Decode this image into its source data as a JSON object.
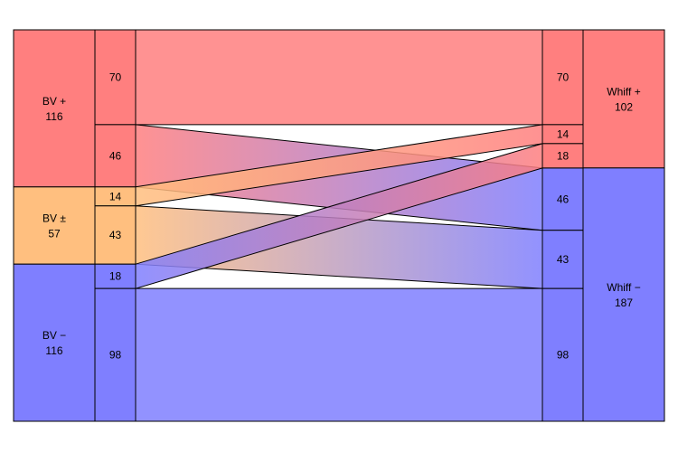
{
  "colors": {
    "plus": "#ff7f7f",
    "neutral": "#ffbf7f",
    "minus": "#7f7fff",
    "border": "#000000",
    "background": "#ffffff"
  },
  "left_groups": [
    {
      "key": "plus",
      "name": "BV +",
      "total": "116"
    },
    {
      "key": "neutral",
      "name": "BV ±",
      "total": "57"
    },
    {
      "key": "minus",
      "name": "BV −",
      "total": "116"
    }
  ],
  "right_groups": [
    {
      "key": "plus",
      "name": "Whiff +",
      "total": "102"
    },
    {
      "key": "minus",
      "name": "Whiff −",
      "total": "187"
    }
  ],
  "flows": [
    {
      "from": "plus",
      "to": "plus",
      "value": 70
    },
    {
      "from": "plus",
      "to": "minus",
      "value": 46
    },
    {
      "from": "neutral",
      "to": "plus",
      "value": 14
    },
    {
      "from": "neutral",
      "to": "minus",
      "value": 43
    },
    {
      "from": "minus",
      "to": "plus",
      "value": 18
    },
    {
      "from": "minus",
      "to": "minus",
      "value": 98
    }
  ]
}
